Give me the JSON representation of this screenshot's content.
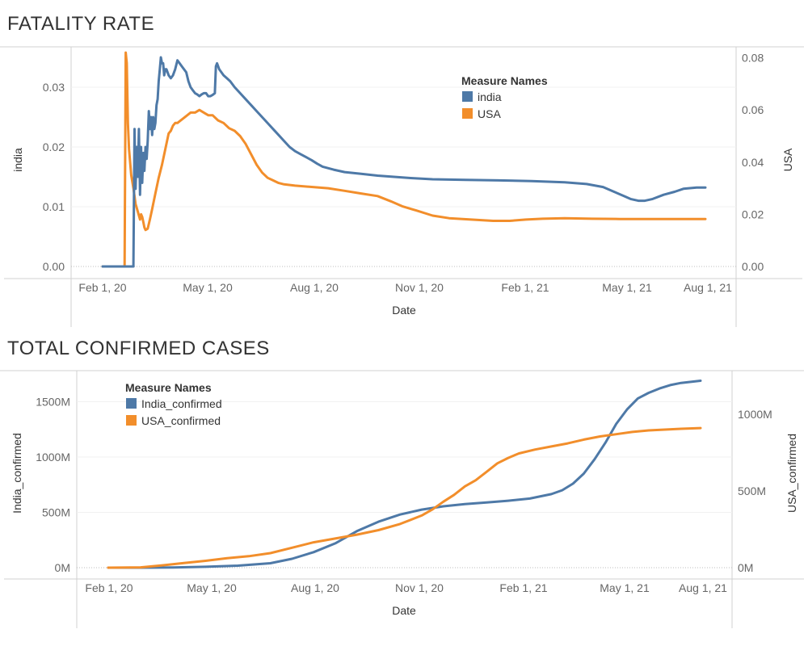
{
  "chart_data": [
    {
      "type": "line",
      "title": "FATALITY RATE",
      "xlabel": "Date",
      "ylabel_left": "india",
      "ylabel_right": "USA",
      "x_ticks": [
        "Feb 1, 20",
        "May 1, 20",
        "Aug 1, 20",
        "Nov 1, 20",
        "Feb 1, 21",
        "May 1, 21",
        "Aug 1, 21"
      ],
      "y_left_ticks": [
        "0.00",
        "0.01",
        "0.02",
        "0.03"
      ],
      "y_right_ticks": [
        "0.00",
        "0.02",
        "0.04",
        "0.06",
        "0.08"
      ],
      "ylim_left": [
        0,
        0.0356
      ],
      "ylim_right": [
        0,
        0.0822
      ],
      "legend_title": "Measure Names",
      "legend_position": "top-right",
      "series": [
        {
          "name": "USA",
          "axis": "right",
          "color": "#f28e2b",
          "points": [
            [
              0,
              0
            ],
            [
              16,
              0
            ],
            [
              20,
              0
            ],
            [
              21,
              0.082
            ],
            [
              22,
              0.078
            ],
            [
              23,
              0.055
            ],
            [
              24,
              0.045
            ],
            [
              26,
              0.035
            ],
            [
              28,
              0.03
            ],
            [
              30,
              0.024
            ],
            [
              32,
              0.021
            ],
            [
              34,
              0.018
            ],
            [
              35,
              0.02
            ],
            [
              36,
              0.019
            ],
            [
              37,
              0.017
            ],
            [
              38,
              0.015
            ],
            [
              39,
              0.014
            ],
            [
              41,
              0.0145
            ],
            [
              43,
              0.018
            ],
            [
              45,
              0.022
            ],
            [
              48,
              0.028
            ],
            [
              51,
              0.034
            ],
            [
              54,
              0.039
            ],
            [
              57,
              0.045
            ],
            [
              60,
              0.051
            ],
            [
              62,
              0.052
            ],
            [
              64,
              0.054
            ],
            [
              66,
              0.055
            ],
            [
              68,
              0.055
            ],
            [
              71,
              0.056
            ],
            [
              74,
              0.057
            ],
            [
              77,
              0.058
            ],
            [
              80,
              0.059
            ],
            [
              84,
              0.059
            ],
            [
              88,
              0.06
            ],
            [
              92,
              0.059
            ],
            [
              96,
              0.058
            ],
            [
              100,
              0.058
            ],
            [
              105,
              0.056
            ],
            [
              110,
              0.055
            ],
            [
              115,
              0.053
            ],
            [
              120,
              0.052
            ],
            [
              125,
              0.05
            ],
            [
              130,
              0.047
            ],
            [
              135,
              0.043
            ],
            [
              140,
              0.039
            ],
            [
              145,
              0.036
            ],
            [
              150,
              0.034
            ],
            [
              155,
              0.033
            ],
            [
              160,
              0.032
            ],
            [
              165,
              0.0315
            ],
            [
              175,
              0.031
            ],
            [
              190,
              0.0305
            ],
            [
              205,
              0.03
            ],
            [
              220,
              0.029
            ],
            [
              235,
              0.028
            ],
            [
              250,
              0.027
            ],
            [
              262,
              0.025
            ],
            [
              273,
              0.023
            ],
            [
              285,
              0.0215
            ],
            [
              300,
              0.0195
            ],
            [
              315,
              0.0185
            ],
            [
              335,
              0.018
            ],
            [
              355,
              0.0175
            ],
            [
              370,
              0.0175
            ],
            [
              385,
              0.018
            ],
            [
              400,
              0.0183
            ],
            [
              420,
              0.0185
            ],
            [
              445,
              0.0183
            ],
            [
              470,
              0.0182
            ],
            [
              500,
              0.0182
            ],
            [
              530,
              0.0182
            ],
            [
              548,
              0.0182
            ]
          ]
        },
        {
          "name": "india",
          "axis": "left",
          "color": "#4e79a7",
          "points": [
            [
              0,
              0
            ],
            [
              20,
              0
            ],
            [
              25,
              0
            ],
            [
              28,
              0
            ],
            [
              29,
              0.023
            ],
            [
              30,
              0.013
            ],
            [
              31,
              0.02
            ],
            [
              32,
              0.015
            ],
            [
              33,
              0.023
            ],
            [
              34,
              0.012
            ],
            [
              35,
              0.02
            ],
            [
              36,
              0.014
            ],
            [
              37,
              0.019
            ],
            [
              38,
              0.016
            ],
            [
              39,
              0.02
            ],
            [
              40,
              0.018
            ],
            [
              41,
              0.021
            ],
            [
              42,
              0.026
            ],
            [
              43,
              0.023
            ],
            [
              44,
              0.025
            ],
            [
              45,
              0.022
            ],
            [
              46,
              0.025
            ],
            [
              47,
              0.023
            ],
            [
              48,
              0.024
            ],
            [
              49,
              0.027
            ],
            [
              50,
              0.028
            ],
            [
              51,
              0.031
            ],
            [
              52,
              0.033
            ],
            [
              53,
              0.035
            ],
            [
              54,
              0.034
            ],
            [
              55,
              0.034
            ],
            [
              56,
              0.032
            ],
            [
              57,
              0.033
            ],
            [
              58,
              0.033
            ],
            [
              60,
              0.032
            ],
            [
              62,
              0.0315
            ],
            [
              64,
              0.032
            ],
            [
              66,
              0.033
            ],
            [
              68,
              0.0345
            ],
            [
              70,
              0.034
            ],
            [
              72,
              0.0335
            ],
            [
              74,
              0.033
            ],
            [
              76,
              0.0325
            ],
            [
              78,
              0.031
            ],
            [
              80,
              0.03
            ],
            [
              82,
              0.0295
            ],
            [
              84,
              0.029
            ],
            [
              86,
              0.0288
            ],
            [
              88,
              0.0285
            ],
            [
              90,
              0.0288
            ],
            [
              92,
              0.029
            ],
            [
              94,
              0.029
            ],
            [
              96,
              0.0285
            ],
            [
              98,
              0.0285
            ],
            [
              100,
              0.0287
            ],
            [
              102,
              0.029
            ],
            [
              103,
              0.0335
            ],
            [
              104,
              0.034
            ],
            [
              106,
              0.033
            ],
            [
              108,
              0.0325
            ],
            [
              110,
              0.032
            ],
            [
              113,
              0.0315
            ],
            [
              116,
              0.031
            ],
            [
              120,
              0.03
            ],
            [
              125,
              0.029
            ],
            [
              130,
              0.028
            ],
            [
              135,
              0.027
            ],
            [
              140,
              0.026
            ],
            [
              145,
              0.025
            ],
            [
              150,
              0.024
            ],
            [
              155,
              0.023
            ],
            [
              160,
              0.022
            ],
            [
              165,
              0.021
            ],
            [
              170,
              0.02
            ],
            [
              175,
              0.0193
            ],
            [
              180,
              0.0188
            ],
            [
              185,
              0.0183
            ],
            [
              190,
              0.0178
            ],
            [
              195,
              0.0172
            ],
            [
              200,
              0.0167
            ],
            [
              210,
              0.0162
            ],
            [
              220,
              0.0158
            ],
            [
              235,
              0.0155
            ],
            [
              250,
              0.0152
            ],
            [
              265,
              0.015
            ],
            [
              280,
              0.0148
            ],
            [
              300,
              0.0146
            ],
            [
              330,
              0.0145
            ],
            [
              360,
              0.0144
            ],
            [
              390,
              0.0143
            ],
            [
              420,
              0.0141
            ],
            [
              440,
              0.0138
            ],
            [
              455,
              0.0133
            ],
            [
              465,
              0.0125
            ],
            [
              475,
              0.0117
            ],
            [
              480,
              0.0113
            ],
            [
              487,
              0.011
            ],
            [
              493,
              0.011
            ],
            [
              500,
              0.0113
            ],
            [
              510,
              0.012
            ],
            [
              520,
              0.0125
            ],
            [
              528,
              0.013
            ],
            [
              540,
              0.0132
            ],
            [
              548,
              0.0132
            ]
          ]
        }
      ]
    },
    {
      "type": "line",
      "title": "TOTAL CONFIRMED CASES",
      "xlabel": "Date",
      "ylabel_left": "India_confirmed",
      "ylabel_right": "USA_confirmed",
      "x_ticks": [
        "Feb 1, 20",
        "May 1, 20",
        "Aug 1, 20",
        "Nov 1, 20",
        "Feb 1, 21",
        "May 1, 21",
        "Aug 1, 21"
      ],
      "y_left_ticks": [
        "0M",
        "500M",
        "1000M",
        "1500M"
      ],
      "y_right_ticks": [
        "0M",
        "500M",
        "1000M"
      ],
      "ylim_left": [
        0,
        1700
      ],
      "ylim_right": [
        0,
        1230
      ],
      "legend_title": "Measure Names",
      "legend_position": "top-left",
      "series": [
        {
          "name": "India_confirmed",
          "axis": "left",
          "color": "#4e79a7",
          "points": [
            [
              0,
              0
            ],
            [
              30,
              0
            ],
            [
              60,
              2
            ],
            [
              90,
              8
            ],
            [
              120,
              18
            ],
            [
              150,
              40
            ],
            [
              170,
              80
            ],
            [
              190,
              140
            ],
            [
              210,
              220
            ],
            [
              230,
              330
            ],
            [
              250,
              415
            ],
            [
              270,
              480
            ],
            [
              290,
              525
            ],
            [
              310,
              555
            ],
            [
              330,
              575
            ],
            [
              350,
              590
            ],
            [
              370,
              605
            ],
            [
              390,
              625
            ],
            [
              410,
              665
            ],
            [
              420,
              700
            ],
            [
              430,
              760
            ],
            [
              440,
              850
            ],
            [
              450,
              980
            ],
            [
              460,
              1130
            ],
            [
              470,
              1300
            ],
            [
              480,
              1430
            ],
            [
              490,
              1530
            ],
            [
              500,
              1580
            ],
            [
              510,
              1620
            ],
            [
              520,
              1650
            ],
            [
              530,
              1670
            ],
            [
              548,
              1690
            ]
          ]
        },
        {
          "name": "USA_confirmed",
          "axis": "right",
          "color": "#f28e2b",
          "points": [
            [
              0,
              0
            ],
            [
              30,
              2
            ],
            [
              50,
              15
            ],
            [
              70,
              30
            ],
            [
              90,
              45
            ],
            [
              110,
              62
            ],
            [
              130,
              75
            ],
            [
              150,
              95
            ],
            [
              170,
              130
            ],
            [
              190,
              165
            ],
            [
              210,
              190
            ],
            [
              230,
              215
            ],
            [
              250,
              245
            ],
            [
              270,
              285
            ],
            [
              290,
              340
            ],
            [
              300,
              380
            ],
            [
              310,
              430
            ],
            [
              320,
              475
            ],
            [
              330,
              530
            ],
            [
              340,
              570
            ],
            [
              350,
              625
            ],
            [
              360,
              680
            ],
            [
              370,
              715
            ],
            [
              380,
              745
            ],
            [
              395,
              770
            ],
            [
              410,
              790
            ],
            [
              425,
              810
            ],
            [
              440,
              835
            ],
            [
              455,
              855
            ],
            [
              470,
              870
            ],
            [
              485,
              885
            ],
            [
              500,
              895
            ],
            [
              515,
              900
            ],
            [
              530,
              905
            ],
            [
              548,
              910
            ]
          ]
        }
      ]
    }
  ]
}
